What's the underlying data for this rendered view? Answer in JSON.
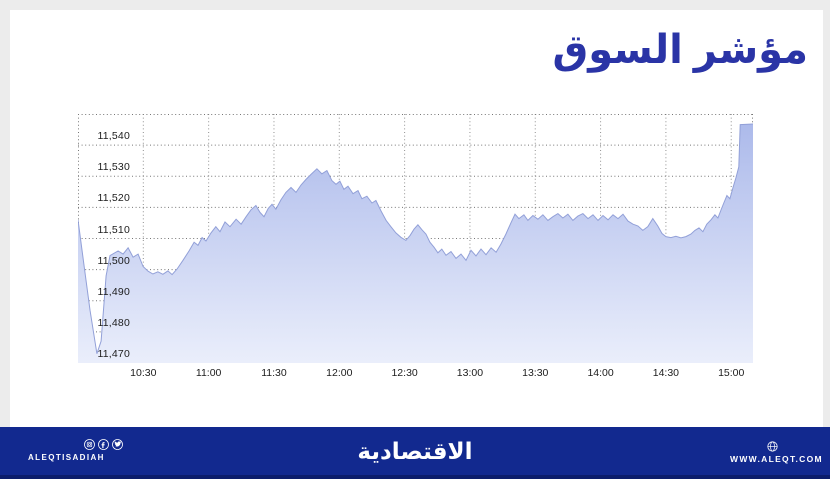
{
  "page": {
    "background": "#ececec",
    "card_background": "#ffffff"
  },
  "header": {
    "title": "مؤشر السوق",
    "title_color": "#2a34a6"
  },
  "chart_data": {
    "type": "area",
    "title": "مؤشر السوق",
    "xlabel": "",
    "ylabel": "",
    "x_axis_unit": "minutes since 10:00",
    "t_range": [
      0,
      310
    ],
    "v_range": [
      11470,
      11550
    ],
    "grid": "dotted",
    "legend": "none",
    "y_ticks": [
      {
        "v": 11470,
        "label": "11,470"
      },
      {
        "v": 11480,
        "label": "11,480"
      },
      {
        "v": 11490,
        "label": "11,490"
      },
      {
        "v": 11500,
        "label": "11,500"
      },
      {
        "v": 11510,
        "label": "11,510"
      },
      {
        "v": 11520,
        "label": "11,520"
      },
      {
        "v": 11530,
        "label": "11,530"
      },
      {
        "v": 11540,
        "label": "11,540"
      }
    ],
    "x_ticks": [
      {
        "t": 30,
        "label": "10:30"
      },
      {
        "t": 60,
        "label": "11:00"
      },
      {
        "t": 90,
        "label": "11:30"
      },
      {
        "t": 120,
        "label": "12:00"
      },
      {
        "t": 150,
        "label": "12:30"
      },
      {
        "t": 180,
        "label": "13:00"
      },
      {
        "t": 210,
        "label": "13:30"
      },
      {
        "t": 240,
        "label": "14:00"
      },
      {
        "t": 270,
        "label": "14:30"
      },
      {
        "t": 300,
        "label": "15:00"
      }
    ],
    "series": [
      {
        "name": "market-index",
        "points": [
          [
            0,
            11516
          ],
          [
            3.2,
            11499
          ],
          [
            5.5,
            11487
          ],
          [
            8.7,
            11473
          ],
          [
            10.6,
            11477
          ],
          [
            12.9,
            11498
          ],
          [
            14.7,
            11504.5
          ],
          [
            18.4,
            11506
          ],
          [
            20.7,
            11505
          ],
          [
            23,
            11507
          ],
          [
            25.3,
            11504
          ],
          [
            27.6,
            11505
          ],
          [
            29.9,
            11501
          ],
          [
            32.2,
            11499.5
          ],
          [
            34.4,
            11498.6
          ],
          [
            36.7,
            11499.3
          ],
          [
            39,
            11498.5
          ],
          [
            41.3,
            11499.6
          ],
          [
            43.2,
            11498.4
          ],
          [
            45.5,
            11500.2
          ],
          [
            48.2,
            11503
          ],
          [
            51,
            11506
          ],
          [
            53.3,
            11508.8
          ],
          [
            55.1,
            11507.8
          ],
          [
            57,
            11510.3
          ],
          [
            58.8,
            11509.2
          ],
          [
            61.1,
            11511.8
          ],
          [
            63.3,
            11513.8
          ],
          [
            65.2,
            11512.2
          ],
          [
            67.5,
            11515.3
          ],
          [
            69.8,
            11513.8
          ],
          [
            72.6,
            11516.2
          ],
          [
            74.9,
            11514.6
          ],
          [
            77.2,
            11517
          ],
          [
            79.4,
            11519.2
          ],
          [
            81.7,
            11520.6
          ],
          [
            83.6,
            11518.4
          ],
          [
            85.4,
            11517
          ],
          [
            87.3,
            11519.6
          ],
          [
            89.1,
            11521
          ],
          [
            90.9,
            11519.4
          ],
          [
            93.2,
            11522.4
          ],
          [
            95.5,
            11524.8
          ],
          [
            97.8,
            11526.4
          ],
          [
            100.1,
            11524.8
          ],
          [
            102.4,
            11527.2
          ],
          [
            104.7,
            11529
          ],
          [
            107,
            11530.6
          ],
          [
            109.7,
            11532.4
          ],
          [
            112,
            11530.8
          ],
          [
            114.3,
            11531.8
          ],
          [
            116.6,
            11528.6
          ],
          [
            118.5,
            11527.4
          ],
          [
            120.3,
            11528.4
          ],
          [
            122.1,
            11525.8
          ],
          [
            124,
            11526.8
          ],
          [
            126.3,
            11524.4
          ],
          [
            128.6,
            11525.4
          ],
          [
            130.4,
            11522.8
          ],
          [
            132.7,
            11523.6
          ],
          [
            135,
            11521.4
          ],
          [
            136.8,
            11522.2
          ],
          [
            139.2,
            11518.8
          ],
          [
            141.5,
            11515.8
          ],
          [
            143.7,
            11513.8
          ],
          [
            146,
            11511.8
          ],
          [
            148.3,
            11510.4
          ],
          [
            150.6,
            11509.4
          ],
          [
            152.5,
            11511
          ],
          [
            154.3,
            11513
          ],
          [
            156.1,
            11514.4
          ],
          [
            158,
            11512.8
          ],
          [
            159.8,
            11511.4
          ],
          [
            161.6,
            11508.8
          ],
          [
            163.5,
            11507.2
          ],
          [
            165.3,
            11505.4
          ],
          [
            167.1,
            11506.6
          ],
          [
            169,
            11504.6
          ],
          [
            171.3,
            11505.8
          ],
          [
            173.6,
            11503.6
          ],
          [
            175.9,
            11505
          ],
          [
            178.2,
            11503
          ],
          [
            180.5,
            11506.2
          ],
          [
            182.8,
            11504.4
          ],
          [
            185.1,
            11506.6
          ],
          [
            187.4,
            11504.8
          ],
          [
            189.7,
            11507
          ],
          [
            192,
            11505.6
          ],
          [
            194.2,
            11508.2
          ],
          [
            196.5,
            11511.4
          ],
          [
            198.8,
            11515
          ],
          [
            200.7,
            11517.8
          ],
          [
            202.5,
            11516.4
          ],
          [
            204.8,
            11517.6
          ],
          [
            206.6,
            11515.8
          ],
          [
            208.9,
            11517.4
          ],
          [
            211.2,
            11516.2
          ],
          [
            213.5,
            11517.6
          ],
          [
            215.8,
            11515.8
          ],
          [
            218.1,
            11517
          ],
          [
            220.4,
            11518
          ],
          [
            222.7,
            11516.6
          ],
          [
            225,
            11517.8
          ],
          [
            227.3,
            11515.8
          ],
          [
            229.6,
            11517.2
          ],
          [
            231.9,
            11518
          ],
          [
            234.2,
            11516.4
          ],
          [
            236.5,
            11517.6
          ],
          [
            238.8,
            11515.8
          ],
          [
            241.1,
            11517.4
          ],
          [
            243.4,
            11516
          ],
          [
            245.7,
            11517.6
          ],
          [
            248,
            11516.4
          ],
          [
            250.3,
            11517.8
          ],
          [
            252.6,
            11515.6
          ],
          [
            254.9,
            11514.6
          ],
          [
            257.2,
            11514
          ],
          [
            259.4,
            11512.6
          ],
          [
            261.7,
            11513.8
          ],
          [
            264,
            11516.4
          ],
          [
            266.3,
            11514
          ],
          [
            268.2,
            11511.6
          ],
          [
            270,
            11510.6
          ],
          [
            272.3,
            11510.3
          ],
          [
            274.6,
            11510.7
          ],
          [
            276.9,
            11510.2
          ],
          [
            279.2,
            11510.6
          ],
          [
            281.5,
            11511.4
          ],
          [
            283.3,
            11512.6
          ],
          [
            285.2,
            11513.4
          ],
          [
            287,
            11512.2
          ],
          [
            288.8,
            11514.6
          ],
          [
            290.7,
            11516
          ],
          [
            292.5,
            11517.6
          ],
          [
            293.9,
            11516.6
          ],
          [
            295.2,
            11519
          ],
          [
            296.6,
            11521.4
          ],
          [
            298,
            11523.8
          ],
          [
            299.4,
            11522.8
          ],
          [
            300.8,
            11526.4
          ],
          [
            302.2,
            11529.6
          ],
          [
            303.5,
            11533
          ],
          [
            304.1,
            11546.6
          ],
          [
            310,
            11546.8
          ]
        ]
      }
    ],
    "colors": {
      "line": "#92a0d8",
      "fill_top": "#aab8ea",
      "fill_bottom": "#eaeefb",
      "grid": "#767676",
      "tick_text": "#1c1c1c"
    }
  },
  "footer": {
    "background": "#12298f",
    "strip_color": "#0c1d6b",
    "social_icons": [
      "instagram",
      "facebook",
      "twitter"
    ],
    "brand_en": "ALEQTISADIAH",
    "logo_ar": "الاقتصادية",
    "website": "WWW.ALEQT.COM"
  }
}
